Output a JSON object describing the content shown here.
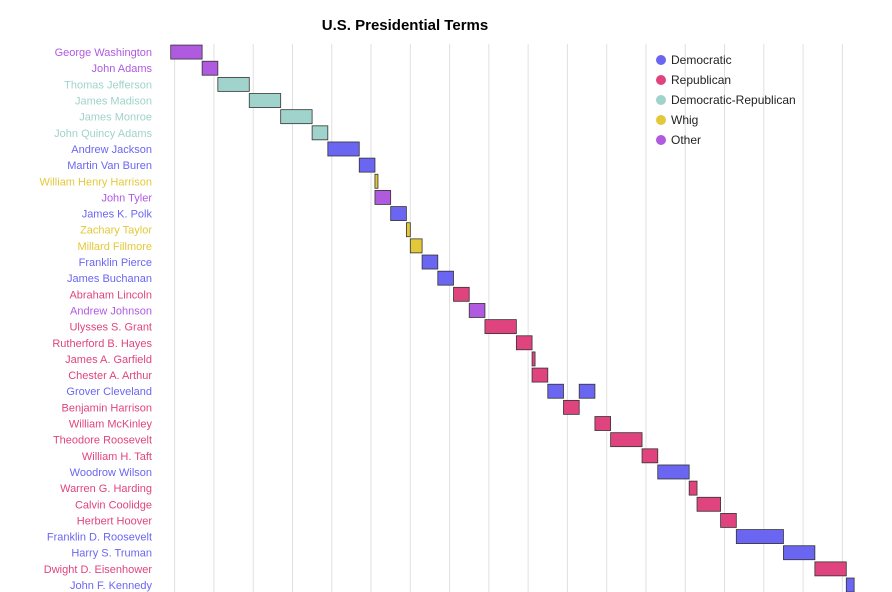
{
  "chart_data": {
    "type": "bar",
    "orientation": "horizontal-range",
    "title": "U.S. Presidential Terms",
    "xlabel": "",
    "ylabel": "",
    "xlim": [
      1785,
      1965
    ],
    "grid": true,
    "legend": {
      "placement": "top-right",
      "entries": [
        {
          "name": "Democratic",
          "color": "#6b66f2"
        },
        {
          "name": "Republican",
          "color": "#e0447e"
        },
        {
          "name": "Democratic-Republican",
          "color": "#9fd3cb"
        },
        {
          "name": "Whig",
          "color": "#e3c93a"
        },
        {
          "name": "Other",
          "color": "#b05ae0"
        }
      ]
    },
    "presidents": [
      {
        "name": "George Washington",
        "party": "Other",
        "terms": [
          [
            1789,
            1797
          ]
        ]
      },
      {
        "name": "John Adams",
        "party": "Other",
        "terms": [
          [
            1797,
            1801
          ]
        ]
      },
      {
        "name": "Thomas Jefferson",
        "party": "Democratic-Republican",
        "terms": [
          [
            1801,
            1809
          ]
        ]
      },
      {
        "name": "James Madison",
        "party": "Democratic-Republican",
        "terms": [
          [
            1809,
            1817
          ]
        ]
      },
      {
        "name": "James Monroe",
        "party": "Democratic-Republican",
        "terms": [
          [
            1817,
            1825
          ]
        ]
      },
      {
        "name": "John Quincy Adams",
        "party": "Democratic-Republican",
        "terms": [
          [
            1825,
            1829
          ]
        ]
      },
      {
        "name": "Andrew Jackson",
        "party": "Democratic",
        "terms": [
          [
            1829,
            1837
          ]
        ]
      },
      {
        "name": "Martin Van Buren",
        "party": "Democratic",
        "terms": [
          [
            1837,
            1841
          ]
        ]
      },
      {
        "name": "William Henry Harrison",
        "party": "Whig",
        "terms": [
          [
            1841,
            1841.1
          ]
        ]
      },
      {
        "name": "John Tyler",
        "party": "Other",
        "terms": [
          [
            1841,
            1845
          ]
        ]
      },
      {
        "name": "James K. Polk",
        "party": "Democratic",
        "terms": [
          [
            1845,
            1849
          ]
        ]
      },
      {
        "name": "Zachary Taylor",
        "party": "Whig",
        "terms": [
          [
            1849,
            1850
          ]
        ]
      },
      {
        "name": "Millard Fillmore",
        "party": "Whig",
        "terms": [
          [
            1850,
            1853
          ]
        ]
      },
      {
        "name": "Franklin Pierce",
        "party": "Democratic",
        "terms": [
          [
            1853,
            1857
          ]
        ]
      },
      {
        "name": "James Buchanan",
        "party": "Democratic",
        "terms": [
          [
            1857,
            1861
          ]
        ]
      },
      {
        "name": "Abraham Lincoln",
        "party": "Republican",
        "terms": [
          [
            1861,
            1865
          ]
        ]
      },
      {
        "name": "Andrew Johnson",
        "party": "Other",
        "terms": [
          [
            1865,
            1869
          ]
        ]
      },
      {
        "name": "Ulysses S. Grant",
        "party": "Republican",
        "terms": [
          [
            1869,
            1877
          ]
        ]
      },
      {
        "name": "Rutherford B. Hayes",
        "party": "Republican",
        "terms": [
          [
            1877,
            1881
          ]
        ]
      },
      {
        "name": "James A. Garfield",
        "party": "Republican",
        "terms": [
          [
            1881,
            1881.5
          ]
        ]
      },
      {
        "name": "Chester A. Arthur",
        "party": "Republican",
        "terms": [
          [
            1881,
            1885
          ]
        ]
      },
      {
        "name": "Grover Cleveland",
        "party": "Democratic",
        "terms": [
          [
            1885,
            1889
          ],
          [
            1893,
            1897
          ]
        ]
      },
      {
        "name": "Benjamin Harrison",
        "party": "Republican",
        "terms": [
          [
            1889,
            1893
          ]
        ]
      },
      {
        "name": "William McKinley",
        "party": "Republican",
        "terms": [
          [
            1897,
            1901
          ]
        ]
      },
      {
        "name": "Theodore Roosevelt",
        "party": "Republican",
        "terms": [
          [
            1901,
            1909
          ]
        ]
      },
      {
        "name": "William H. Taft",
        "party": "Republican",
        "terms": [
          [
            1909,
            1913
          ]
        ]
      },
      {
        "name": "Woodrow Wilson",
        "party": "Democratic",
        "terms": [
          [
            1913,
            1921
          ]
        ]
      },
      {
        "name": "Warren G. Harding",
        "party": "Republican",
        "terms": [
          [
            1921,
            1923
          ]
        ]
      },
      {
        "name": "Calvin Coolidge",
        "party": "Republican",
        "terms": [
          [
            1923,
            1929
          ]
        ]
      },
      {
        "name": "Herbert Hoover",
        "party": "Republican",
        "terms": [
          [
            1929,
            1933
          ]
        ]
      },
      {
        "name": "Franklin D. Roosevelt",
        "party": "Democratic",
        "terms": [
          [
            1933,
            1945
          ]
        ]
      },
      {
        "name": "Harry S. Truman",
        "party": "Democratic",
        "terms": [
          [
            1945,
            1953
          ]
        ]
      },
      {
        "name": "Dwight D. Eisenhower",
        "party": "Republican",
        "terms": [
          [
            1953,
            1961
          ]
        ]
      },
      {
        "name": "John F. Kennedy",
        "party": "Democratic",
        "terms": [
          [
            1961,
            1963
          ]
        ]
      }
    ]
  }
}
